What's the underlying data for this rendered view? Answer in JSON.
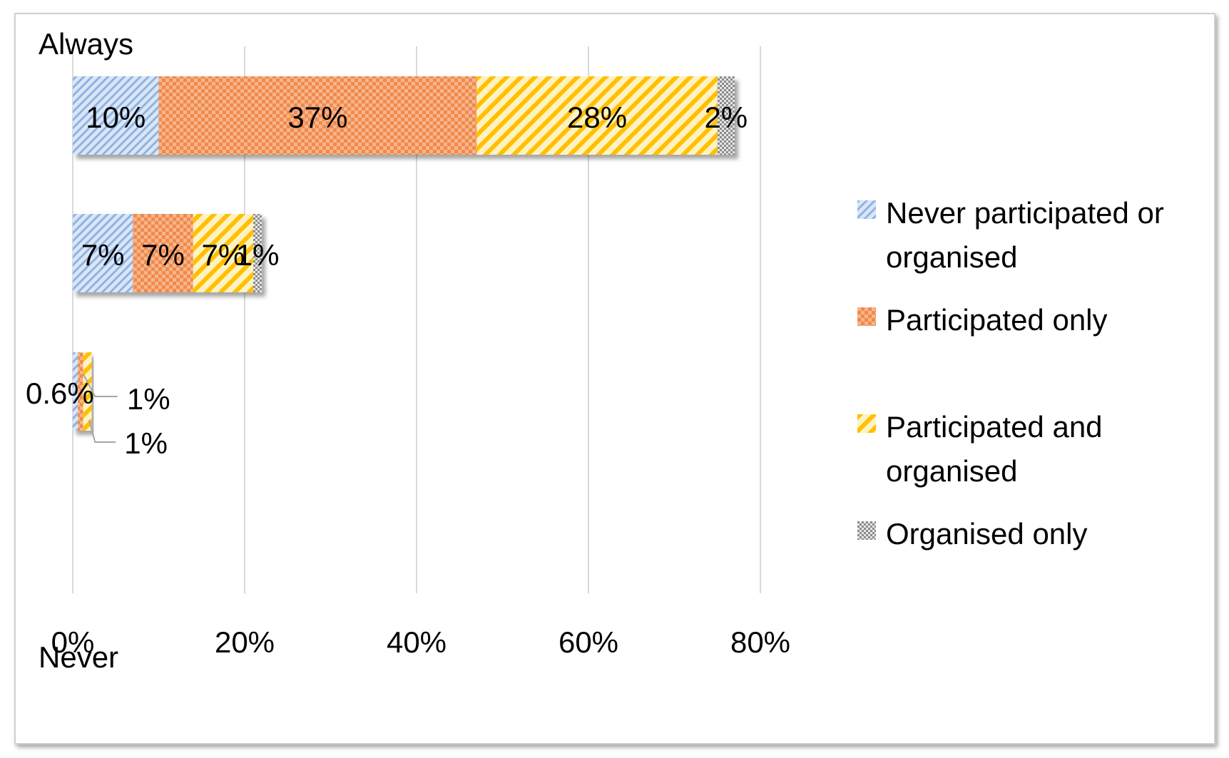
{
  "chart_data": {
    "type": "bar",
    "orientation": "horizontal",
    "stacked": true,
    "axis_top_label": "Always",
    "axis_bottom_label": "Never",
    "xlim": [
      0,
      80
    ],
    "x_ticks": [
      "0%",
      "20%",
      "40%",
      "60%",
      "80%"
    ],
    "x_tick_values": [
      0,
      20,
      40,
      60,
      80
    ],
    "grid": true,
    "legend_position": "right",
    "series": [
      {
        "name": "Never participated or organised",
        "color": "#8fb4e3",
        "pattern": "diagonal-dots",
        "values": [
          10,
          7,
          0.6
        ]
      },
      {
        "name": "Participated only",
        "color": "#f08a4b",
        "pattern": "checker",
        "values": [
          37,
          7,
          0.6
        ]
      },
      {
        "name": "Participated and organised",
        "color": "#ffc000",
        "pattern": "diagonal-stripes",
        "values": [
          28,
          7,
          1
        ]
      },
      {
        "name": "Organised only",
        "color": "#a6a6a6",
        "pattern": "fine-checker",
        "values": [
          2,
          1,
          0
        ]
      }
    ],
    "data_labels": [
      [
        "10%",
        "37%",
        "28%",
        "2%"
      ],
      [
        "7%",
        "7%",
        "7%",
        "1%"
      ],
      [
        "0.6%",
        "1%",
        "1%",
        ""
      ]
    ]
  }
}
